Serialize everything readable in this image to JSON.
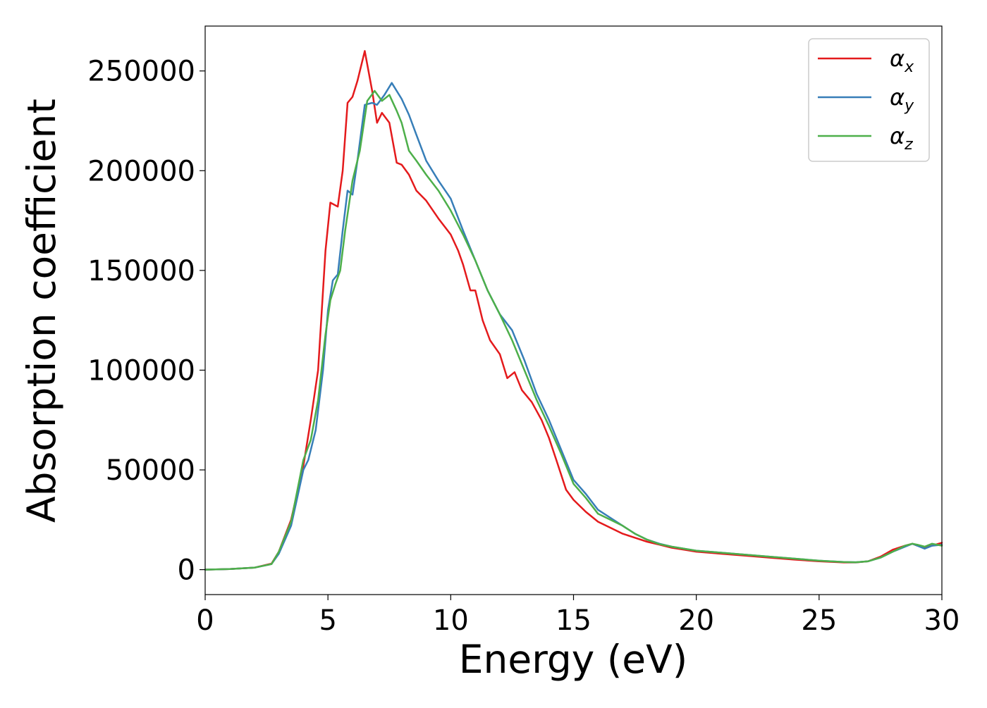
{
  "chart_data": {
    "type": "line",
    "title": "",
    "xlabel": "Energy (eV)",
    "ylabel": "Absorption coefficient",
    "xlim": [
      0,
      30
    ],
    "ylim": [
      -12500,
      272500
    ],
    "xticks": [
      0,
      5,
      10,
      15,
      20,
      25,
      30
    ],
    "yticks": [
      0,
      50000,
      100000,
      150000,
      200000,
      250000
    ],
    "grid": false,
    "legend_position": "top-right",
    "series": [
      {
        "name": "αx",
        "symbol": "α",
        "subscript": "x",
        "color": "#e41a1c",
        "x": [
          0,
          1,
          2,
          2.7,
          3.0,
          3.5,
          4.0,
          4.3,
          4.6,
          4.9,
          5.1,
          5.4,
          5.6,
          5.8,
          6.0,
          6.2,
          6.5,
          6.8,
          7.0,
          7.2,
          7.5,
          7.8,
          8.0,
          8.3,
          8.6,
          9.0,
          9.5,
          10.0,
          10.3,
          10.5,
          10.8,
          11.0,
          11.3,
          11.6,
          12.0,
          12.3,
          12.6,
          12.9,
          13.3,
          13.7,
          14.0,
          14.3,
          14.7,
          15.0,
          15.5,
          16.0,
          16.5,
          17.0,
          17.5,
          18.0,
          18.5,
          19.0,
          19.5,
          20.0,
          21.0,
          22.0,
          23.0,
          24.0,
          25.0,
          26.0,
          26.5,
          27.0,
          27.5,
          28.0,
          28.5,
          28.8,
          29.0,
          29.3,
          29.6,
          30.0
        ],
        "y": [
          0,
          300,
          1000,
          3000,
          9000,
          25000,
          52000,
          75000,
          100000,
          160000,
          184000,
          182000,
          200000,
          234000,
          237000,
          245000,
          260000,
          240000,
          224000,
          229000,
          224000,
          204000,
          203000,
          198000,
          190000,
          185000,
          176000,
          168000,
          160000,
          153000,
          140000,
          140000,
          125000,
          115000,
          108000,
          96000,
          99000,
          90000,
          84000,
          75000,
          66000,
          55000,
          40000,
          35000,
          29000,
          24000,
          21000,
          18000,
          16000,
          14000,
          12500,
          11000,
          10000,
          9000,
          8000,
          7000,
          6000,
          5000,
          4200,
          3600,
          3600,
          4200,
          6500,
          10000,
          12000,
          13000,
          12000,
          11000,
          12000,
          13500
        ]
      },
      {
        "name": "αy",
        "symbol": "α",
        "subscript": "y",
        "color": "#377eb8",
        "x": [
          0,
          1,
          2,
          2.7,
          3.0,
          3.5,
          4.0,
          4.2,
          4.5,
          4.8,
          5.0,
          5.2,
          5.4,
          5.6,
          5.8,
          6.0,
          6.2,
          6.5,
          6.8,
          7.0,
          7.3,
          7.6,
          8.0,
          8.3,
          8.6,
          9.0,
          9.5,
          10.0,
          10.5,
          11.0,
          11.5,
          12.0,
          12.5,
          13.0,
          13.5,
          14.0,
          14.5,
          15.0,
          15.5,
          16.0,
          16.5,
          17.0,
          17.5,
          18.0,
          18.5,
          19.0,
          19.5,
          20.0,
          21.0,
          22.0,
          23.0,
          24.0,
          25.0,
          26.0,
          26.5,
          27.0,
          27.5,
          28.0,
          28.5,
          28.8,
          29.0,
          29.3,
          29.6,
          30.0
        ],
        "y": [
          0,
          300,
          1000,
          2800,
          8000,
          22000,
          50000,
          55000,
          70000,
          100000,
          130000,
          145000,
          148000,
          170000,
          190000,
          188000,
          205000,
          233000,
          234000,
          233000,
          238000,
          244000,
          236000,
          228000,
          218000,
          205000,
          195000,
          186000,
          170000,
          155000,
          140000,
          128000,
          120000,
          105000,
          88000,
          75000,
          60000,
          45000,
          38000,
          30000,
          26000,
          22000,
          18000,
          15000,
          13000,
          11500,
          10500,
          9500,
          8500,
          7500,
          6500,
          5500,
          4500,
          3800,
          3700,
          4200,
          6000,
          9000,
          11500,
          13000,
          12000,
          10500,
          12000,
          12500
        ]
      },
      {
        "name": "αz",
        "symbol": "α",
        "subscript": "z",
        "color": "#4daf4a",
        "x": [
          0,
          1,
          2,
          2.7,
          3.0,
          3.5,
          4.0,
          4.3,
          4.6,
          4.9,
          5.1,
          5.3,
          5.5,
          5.7,
          6.0,
          6.3,
          6.6,
          6.9,
          7.2,
          7.5,
          7.8,
          8.0,
          8.3,
          8.6,
          9.0,
          9.5,
          10.0,
          10.5,
          11.0,
          11.5,
          12.0,
          12.5,
          13.0,
          13.5,
          14.0,
          14.5,
          15.0,
          15.5,
          16.0,
          16.5,
          17.0,
          17.5,
          18.0,
          18.5,
          19.0,
          19.5,
          20.0,
          21.0,
          22.0,
          23.0,
          24.0,
          25.0,
          26.0,
          26.5,
          27.0,
          27.5,
          28.0,
          28.5,
          28.8,
          29.0,
          29.3,
          29.6,
          30.0
        ],
        "y": [
          0,
          300,
          1000,
          2800,
          9000,
          24000,
          55000,
          65000,
          85000,
          118000,
          135000,
          143000,
          150000,
          170000,
          195000,
          210000,
          235000,
          240000,
          235000,
          238000,
          230000,
          224000,
          210000,
          205000,
          198000,
          190000,
          180000,
          168000,
          155000,
          140000,
          128000,
          115000,
          100000,
          85000,
          72000,
          58000,
          43000,
          36000,
          28000,
          25000,
          22000,
          18000,
          15000,
          12800,
          11500,
          10500,
          9500,
          8500,
          7500,
          6500,
          5500,
          4500,
          3800,
          3700,
          4200,
          6000,
          9000,
          12000,
          13000,
          12500,
          11500,
          13000,
          12000
        ]
      }
    ]
  }
}
